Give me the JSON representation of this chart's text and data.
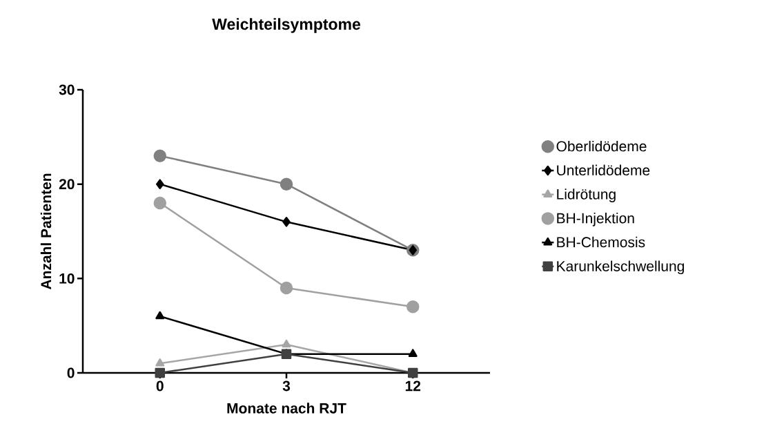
{
  "chart_data": {
    "type": "line",
    "title": "Weichteilsymptome",
    "xlabel": "Monate nach RJT",
    "ylabel": "Anzahl Patienten",
    "categories": [
      "0",
      "3",
      "12"
    ],
    "series": [
      {
        "name": "Oberlidödeme",
        "color": "#808080",
        "marker": "circle",
        "values": [
          23,
          20,
          13
        ]
      },
      {
        "name": "Unterlidödeme",
        "color": "#000000",
        "marker": "diamond",
        "values": [
          20,
          16,
          13
        ]
      },
      {
        "name": "Lidrötung",
        "color": "#a6a6a6",
        "marker": "triangle",
        "values": [
          1,
          3,
          0
        ]
      },
      {
        "name": "BH-Injektion",
        "color": "#a0a0a0",
        "marker": "circle",
        "values": [
          18,
          9,
          7
        ]
      },
      {
        "name": "BH-Chemosis",
        "color": "#000000",
        "marker": "triangle",
        "values": [
          6,
          2,
          2
        ]
      },
      {
        "name": "Karunkelschwellung",
        "color": "#404040",
        "marker": "square",
        "values": [
          0,
          2,
          0
        ]
      }
    ],
    "ylim": [
      0,
      30
    ],
    "yticks": [
      0,
      10,
      20,
      30
    ],
    "grid": false,
    "legend": "right",
    "line_style": "solid"
  }
}
